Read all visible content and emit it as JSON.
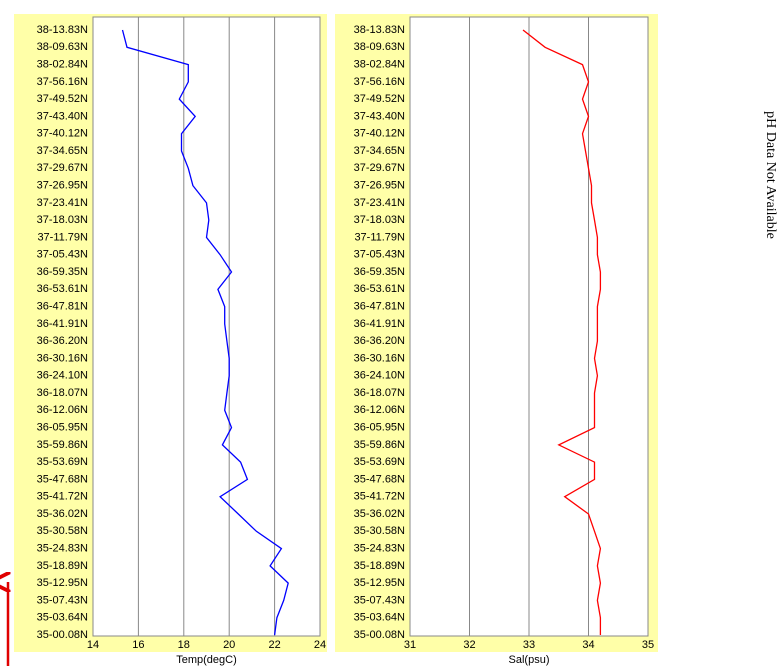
{
  "chart_data": [
    {
      "type": "line",
      "orientation": "horizontal",
      "xlabel": "Temp(degC)",
      "color": "#0000ff",
      "grid": true,
      "categories": [
        "38-13.83N",
        "38-09.63N",
        "38-02.84N",
        "37-56.16N",
        "37-49.52N",
        "37-43.40N",
        "37-40.12N",
        "37-34.65N",
        "37-29.67N",
        "37-26.95N",
        "37-23.41N",
        "37-18.03N",
        "37-11.79N",
        "37-05.43N",
        "36-59.35N",
        "36-53.61N",
        "36-47.81N",
        "36-41.91N",
        "36-36.20N",
        "36-30.16N",
        "36-24.10N",
        "36-18.07N",
        "36-12.06N",
        "36-05.95N",
        "35-59.86N",
        "35-53.69N",
        "35-47.68N",
        "35-41.72N",
        "35-36.02N",
        "35-30.58N",
        "35-24.83N",
        "35-18.89N",
        "35-12.95N",
        "35-07.43N",
        "35-03.64N",
        "35-00.08N"
      ],
      "values": [
        15.3,
        15.5,
        18.2,
        18.2,
        17.8,
        18.5,
        17.9,
        17.9,
        18.2,
        18.4,
        19.0,
        19.1,
        19.0,
        19.6,
        20.1,
        19.5,
        19.8,
        19.8,
        19.9,
        20.0,
        20.0,
        19.9,
        19.8,
        20.1,
        19.7,
        20.5,
        20.8,
        19.6,
        20.4,
        21.2,
        22.3,
        21.8,
        22.6,
        22.4,
        22.1,
        22.0
      ],
      "xlim": [
        14,
        24
      ],
      "xticks": [
        14,
        16,
        18,
        20,
        22,
        24
      ]
    },
    {
      "type": "line",
      "orientation": "horizontal",
      "xlabel": "Sal(psu)",
      "color": "#ff0000",
      "grid": true,
      "categories": [
        "38-13.83N",
        "38-09.63N",
        "38-02.84N",
        "37-56.16N",
        "37-49.52N",
        "37-43.40N",
        "37-40.12N",
        "37-34.65N",
        "37-29.67N",
        "37-26.95N",
        "37-23.41N",
        "37-18.03N",
        "37-11.79N",
        "37-05.43N",
        "36-59.35N",
        "36-53.61N",
        "36-47.81N",
        "36-41.91N",
        "36-36.20N",
        "36-30.16N",
        "36-24.10N",
        "36-18.07N",
        "36-12.06N",
        "36-05.95N",
        "35-59.86N",
        "35-53.69N",
        "35-47.68N",
        "35-41.72N",
        "35-36.02N",
        "35-30.58N",
        "35-24.83N",
        "35-18.89N",
        "35-12.95N",
        "35-07.43N",
        "35-03.64N",
        "35-00.08N"
      ],
      "values": [
        32.9,
        33.27,
        33.9,
        34.0,
        33.9,
        34.0,
        33.9,
        33.95,
        34.0,
        34.05,
        34.05,
        34.1,
        34.15,
        34.15,
        34.2,
        34.2,
        34.15,
        34.15,
        34.15,
        34.1,
        34.15,
        34.1,
        34.1,
        34.1,
        33.5,
        34.1,
        34.1,
        33.6,
        34.0,
        34.1,
        34.2,
        34.15,
        34.2,
        34.15,
        34.2,
        34.2
      ],
      "xlim": [
        31,
        35
      ],
      "xticks": [
        31,
        32,
        33,
        34,
        35
      ]
    }
  ],
  "note": "pH Data Not Available"
}
